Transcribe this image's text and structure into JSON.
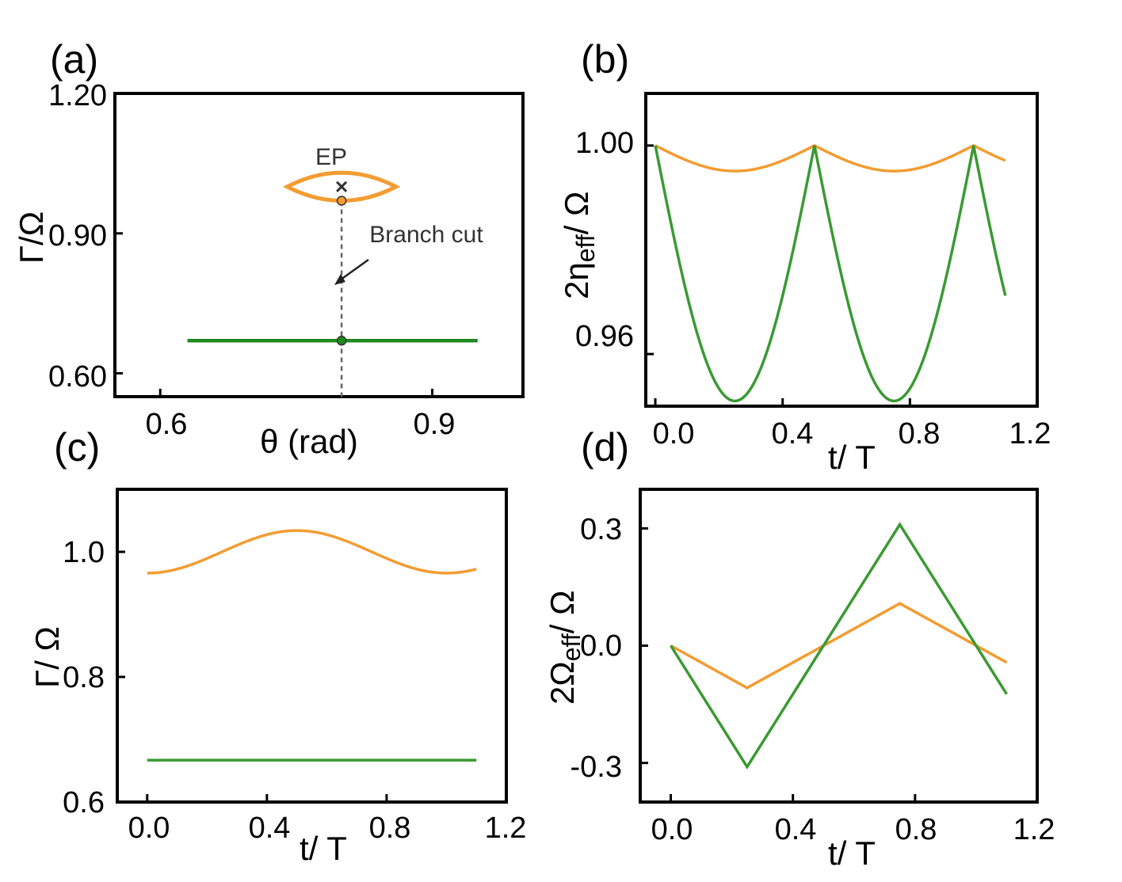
{
  "colors": {
    "orange": "#f39c32",
    "green": "#3a9a32",
    "green_dark": "#1f8a1f",
    "axis": "#000000"
  },
  "chart_data": [
    {
      "panel": "(a)",
      "type": "line",
      "xlabel": "θ (rad)",
      "ylabel": "Γ/Ω",
      "xlim": [
        0.55,
        1.0
      ],
      "ylim": [
        0.55,
        1.2
      ],
      "xticks": [
        "0.6",
        "0.9"
      ],
      "xtick_values": [
        0.6,
        0.9
      ],
      "yticks": [
        "0.60",
        "0.90",
        "1.20"
      ],
      "ytick_values": [
        0.6,
        0.9,
        1.2
      ],
      "series": [
        {
          "name": "EP loop (orange)",
          "x": [
            0.74,
            0.77,
            0.8,
            0.83,
            0.86,
            0.83,
            0.8,
            0.77,
            0.74
          ],
          "y": [
            1.0,
            1.021,
            1.03,
            1.021,
            1.0,
            0.979,
            0.97,
            0.979,
            1.0
          ]
        },
        {
          "name": "green line",
          "x": [
            0.63,
            0.95
          ],
          "y": [
            0.67,
            0.67
          ]
        }
      ],
      "markers": [
        {
          "name": "EP cross",
          "x": 0.8,
          "y": 1.0
        },
        {
          "name": "orange point",
          "x": 0.8,
          "y": 0.97
        },
        {
          "name": "green point",
          "x": 0.8,
          "y": 0.67
        }
      ],
      "branch_cut_x": 0.8,
      "annotations": {
        "ep": "EP",
        "branch_cut": "Branch cut"
      }
    },
    {
      "panel": "(b)",
      "type": "line",
      "xlabel": "t/ T",
      "ylabel_main": "2η",
      "ylabel_sub": "eff",
      "ylabel_tail": "/ Ω",
      "xlim": [
        -0.03,
        1.2
      ],
      "ylim": [
        0.95,
        1.01
      ],
      "xticks": [
        "0.0",
        "0.4",
        "0.8",
        "1.2"
      ],
      "xtick_values": [
        0.0,
        0.4,
        0.8,
        1.2
      ],
      "yticks": [
        "0.96",
        "1.00"
      ],
      "ytick_values": [
        0.96,
        1.0
      ],
      "series": [
        {
          "name": "orange",
          "formula": "1 - 0.0049*|sin(2*pi*t)|",
          "t_range": [
            0,
            1.1
          ],
          "dip": 0.9951
        },
        {
          "name": "green",
          "formula": "1 - 0.049*|sin(2*pi*t)|",
          "t_range": [
            0,
            1.1
          ],
          "dip": 0.951
        }
      ]
    },
    {
      "panel": "(c)",
      "type": "line",
      "xlabel": "t/ T",
      "ylabel": "Γ/ Ω",
      "xlim": [
        -0.1,
        1.2
      ],
      "ylim": [
        0.6,
        1.1
      ],
      "xticks": [
        "0.0",
        "0.4",
        "0.8",
        "1.2"
      ],
      "xtick_values": [
        0.0,
        0.4,
        0.8,
        1.2
      ],
      "yticks": [
        "0.6",
        "0.8",
        "1.0"
      ],
      "ytick_values": [
        0.6,
        0.8,
        1.0
      ],
      "series": [
        {
          "name": "orange",
          "formula": "1.0 - 0.034*cos(2*pi*t)",
          "t_range": [
            0,
            1.1
          ],
          "min": 0.966,
          "max": 1.034
        },
        {
          "name": "green",
          "formula": "0.667",
          "t_range": [
            0,
            1.1
          ],
          "value": 0.667
        }
      ]
    },
    {
      "panel": "(d)",
      "type": "line",
      "xlabel": "t/ T",
      "ylabel_main": "2Ω",
      "ylabel_sub": "eff",
      "ylabel_tail": "/ Ω",
      "xlim": [
        -0.1,
        1.2
      ],
      "ylim": [
        -0.4,
        0.4
      ],
      "xticks": [
        "0.0",
        "0.4",
        "0.8",
        "1.2"
      ],
      "xtick_values": [
        0.0,
        0.4,
        0.8,
        1.2
      ],
      "yticks": [
        "-0.3",
        "0.0",
        "0.3"
      ],
      "ytick_values": [
        -0.3,
        0.0,
        0.3
      ],
      "series": [
        {
          "name": "orange",
          "x": [
            0.0,
            0.25,
            0.75,
            1.1
          ],
          "y": [
            0.0,
            -0.108,
            0.108,
            -0.043
          ]
        },
        {
          "name": "green",
          "x": [
            0.0,
            0.25,
            0.75,
            1.1
          ],
          "y": [
            0.0,
            -0.31,
            0.31,
            -0.124
          ]
        }
      ]
    }
  ]
}
